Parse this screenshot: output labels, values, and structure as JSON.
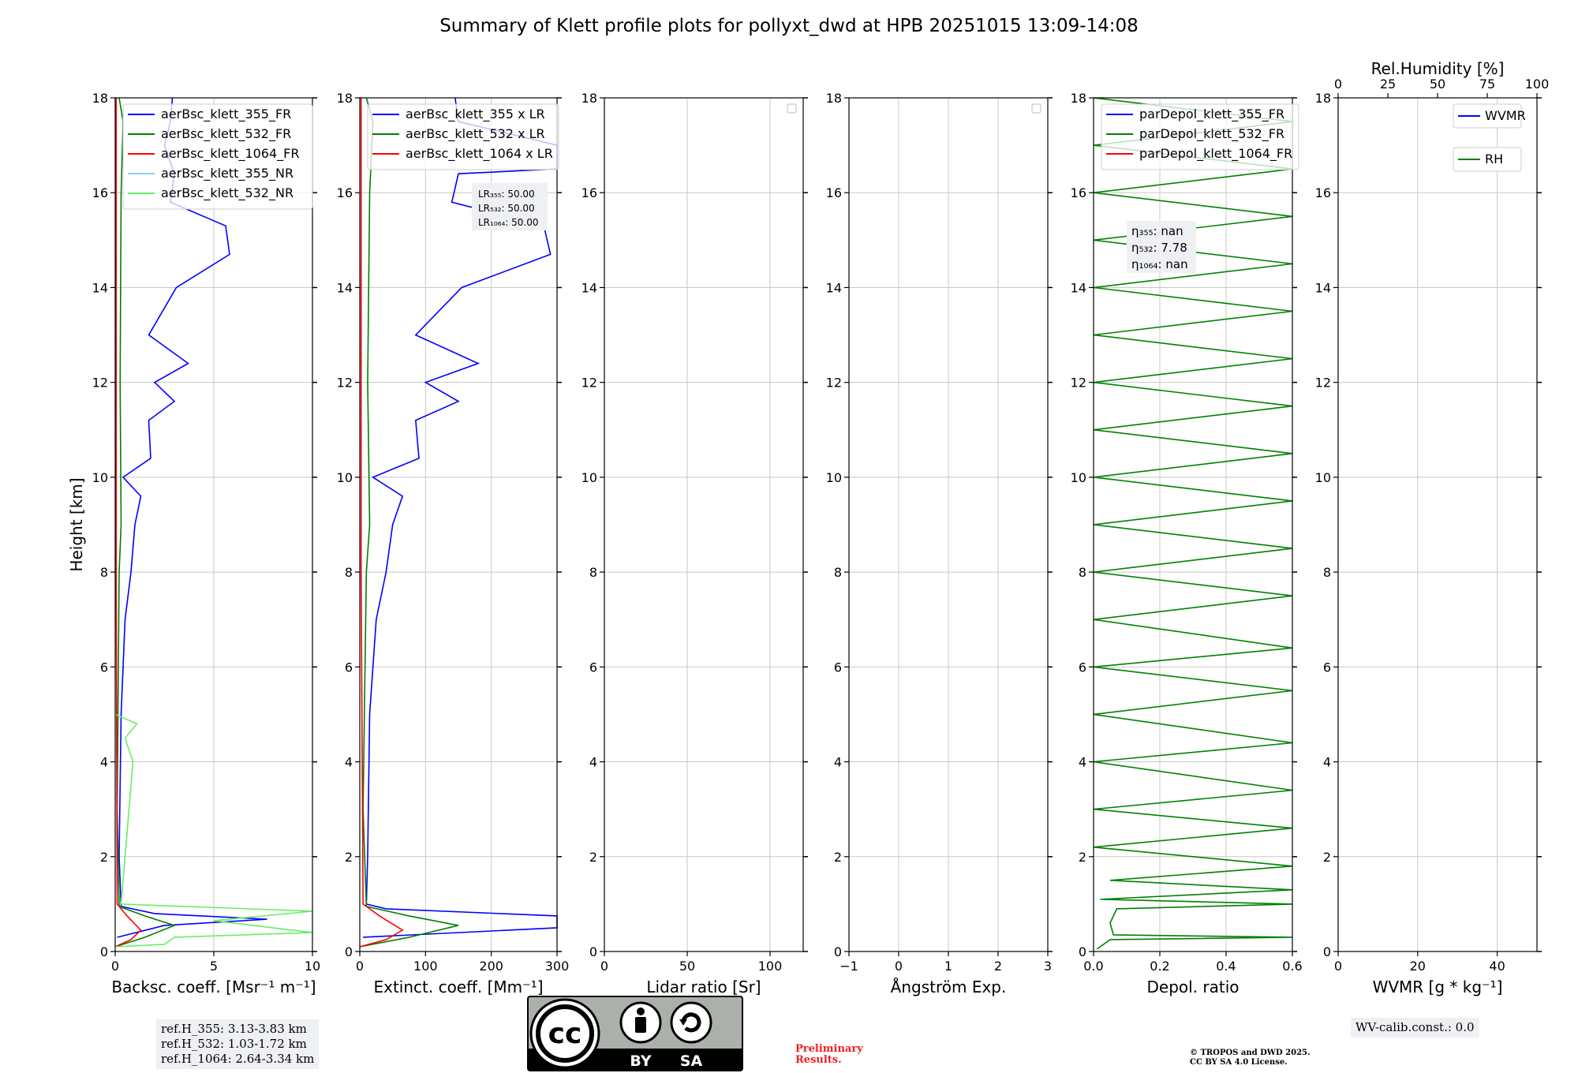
{
  "title": "Summary of Klett profile plots for pollyxt_dwd at HPB 20251015 13:09-14:08",
  "colors": {
    "b355": "#0000ff",
    "b532": "#008000",
    "b1064": "#ff0000",
    "nr355": "#87cefa",
    "nr532": "#66ee66",
    "grid": "#c8c8c8"
  },
  "chart_data": [
    {
      "id": "bsc",
      "type": "line",
      "xlabel": "Backsc. coeff. [Msr⁻¹ m⁻¹]",
      "ylabel": "Height [km]",
      "xlim": [
        0,
        10
      ],
      "ylim": [
        0,
        18
      ],
      "xticks": [
        0,
        5,
        10
      ],
      "xticklabels": [
        "0",
        "5",
        "10"
      ],
      "yticks": [
        0,
        2,
        4,
        6,
        8,
        10,
        12,
        14,
        16,
        18
      ],
      "legend": [
        "aerBsc_klett_355_FR",
        "aerBsc_klett_532_FR",
        "aerBsc_klett_1064_FR",
        "aerBsc_klett_355_NR",
        "aerBsc_klett_532_NR"
      ],
      "series": [
        {
          "name": "aerBsc_klett_355_FR",
          "color": "b355",
          "points": [
            [
              0.1,
              0.3
            ],
            [
              2.5,
              0.55
            ],
            [
              7.7,
              0.68
            ],
            [
              2.0,
              0.8
            ],
            [
              0.3,
              0.95
            ],
            [
              0.2,
              2.0
            ],
            [
              0.3,
              5.0
            ],
            [
              0.5,
              7.0
            ],
            [
              0.8,
              8.0
            ],
            [
              1.0,
              9.0
            ],
            [
              1.3,
              9.6
            ],
            [
              0.4,
              10.0
            ],
            [
              1.8,
              10.4
            ],
            [
              1.7,
              11.2
            ],
            [
              3.0,
              11.6
            ],
            [
              2.0,
              12.0
            ],
            [
              3.7,
              12.4
            ],
            [
              1.7,
              13.0
            ],
            [
              3.1,
              14.0
            ],
            [
              5.8,
              14.7
            ],
            [
              5.6,
              15.3
            ],
            [
              2.8,
              15.8
            ],
            [
              3.0,
              16.4
            ],
            [
              2.5,
              17.0
            ],
            [
              2.8,
              17.5
            ],
            [
              2.9,
              18.0
            ]
          ]
        },
        {
          "name": "aerBsc_klett_532_FR",
          "color": "b532",
          "points": [
            [
              0.0,
              0.1
            ],
            [
              1.5,
              0.3
            ],
            [
              3.0,
              0.55
            ],
            [
              1.5,
              0.75
            ],
            [
              0.2,
              0.95
            ],
            [
              0.1,
              3.0
            ],
            [
              0.2,
              8.0
            ],
            [
              0.3,
              9.0
            ],
            [
              0.25,
              12.0
            ],
            [
              0.3,
              16.0
            ],
            [
              0.4,
              17.5
            ],
            [
              0.2,
              18.0
            ]
          ]
        },
        {
          "name": "aerBsc_klett_1064_FR",
          "color": "b1064",
          "points": [
            [
              0.0,
              0.1
            ],
            [
              0.8,
              0.25
            ],
            [
              1.3,
              0.45
            ],
            [
              0.6,
              0.75
            ],
            [
              0.1,
              1.0
            ],
            [
              0.05,
              8.0
            ],
            [
              0.05,
              18.0
            ]
          ]
        },
        {
          "name": "aerBsc_klett_532_NR",
          "color": "nr532",
          "points": [
            [
              0.0,
              0.1
            ],
            [
              2.5,
              0.15
            ],
            [
              3.0,
              0.3
            ],
            [
              10.0,
              0.4
            ],
            [
              5.0,
              0.65
            ],
            [
              10.0,
              0.85
            ],
            [
              0.3,
              1.0
            ],
            [
              0.5,
              2.0
            ],
            [
              0.7,
              3.0
            ],
            [
              0.9,
              4.0
            ],
            [
              0.5,
              4.5
            ],
            [
              1.1,
              4.8
            ],
            [
              0.0,
              5.0
            ]
          ]
        }
      ]
    },
    {
      "id": "ext",
      "type": "line",
      "xlabel": "Extinct. coeff. [Mm⁻¹]",
      "xlim": [
        0,
        300
      ],
      "ylim": [
        0,
        18
      ],
      "xticks": [
        0,
        100,
        200,
        300
      ],
      "xticklabels": [
        "0",
        "100",
        "200",
        "300"
      ],
      "yticks": [
        0,
        2,
        4,
        6,
        8,
        10,
        12,
        14,
        16,
        18
      ],
      "legend": [
        "aerBsc_klett_355 x LR",
        "aerBsc_klett_532 x LR",
        "aerBsc_klett_1064 x LR"
      ],
      "annotations": [
        "LR₃₅₅: 50.00",
        "LR₅₃₂: 50.00",
        "LR₁₀₆₄: 50.00"
      ],
      "series": [
        {
          "name": "aerBsc_klett_355 x LR",
          "color": "b355",
          "points": [
            [
              5,
              0.3
            ],
            [
              300,
              0.5
            ],
            [
              300,
              0.75
            ],
            [
              40,
              0.9
            ],
            [
              10,
              1.0
            ],
            [
              12,
              2.0
            ],
            [
              15,
              5.0
            ],
            [
              25,
              7.0
            ],
            [
              40,
              8.0
            ],
            [
              50,
              9.0
            ],
            [
              65,
              9.6
            ],
            [
              20,
              10.0
            ],
            [
              90,
              10.4
            ],
            [
              85,
              11.2
            ],
            [
              150,
              11.6
            ],
            [
              100,
              12.0
            ],
            [
              180,
              12.4
            ],
            [
              85,
              13.0
            ],
            [
              155,
              14.0
            ],
            [
              290,
              14.7
            ],
            [
              280,
              15.3
            ],
            [
              140,
              15.8
            ],
            [
              150,
              16.4
            ],
            [
              300,
              16.5
            ],
            [
              300,
              17.0
            ],
            [
              150,
              17.5
            ],
            [
              145,
              18.0
            ]
          ]
        },
        {
          "name": "aerBsc_klett_532 x LR",
          "color": "b532",
          "points": [
            [
              0,
              0.1
            ],
            [
              75,
              0.3
            ],
            [
              150,
              0.55
            ],
            [
              75,
              0.75
            ],
            [
              10,
              0.95
            ],
            [
              5,
              3.0
            ],
            [
              10,
              8.0
            ],
            [
              15,
              9.0
            ],
            [
              12,
              12.0
            ],
            [
              15,
              16.0
            ],
            [
              20,
              17.5
            ],
            [
              10,
              18.0
            ]
          ]
        },
        {
          "name": "aerBsc_klett_1064 x LR",
          "color": "b1064",
          "points": [
            [
              0,
              0.1
            ],
            [
              40,
              0.25
            ],
            [
              65,
              0.45
            ],
            [
              30,
              0.75
            ],
            [
              5,
              1.0
            ],
            [
              2,
              8.0
            ],
            [
              2,
              18.0
            ]
          ]
        }
      ]
    },
    {
      "id": "lr",
      "type": "line",
      "xlabel": "Lidar ratio [Sr]",
      "xlim": [
        0,
        120
      ],
      "ylim": [
        0,
        18
      ],
      "xticks": [
        0,
        50,
        100
      ],
      "xticklabels": [
        "0",
        "50",
        "100"
      ],
      "yticks": [
        0,
        2,
        4,
        6,
        8,
        10,
        12,
        14,
        16,
        18
      ],
      "series": []
    },
    {
      "id": "ang",
      "type": "line",
      "xlabel": "Ångström Exp.",
      "xlim": [
        -1,
        3
      ],
      "ylim": [
        0,
        18
      ],
      "xticks": [
        -1,
        0,
        1,
        2,
        3
      ],
      "xticklabels": [
        "−1",
        "0",
        "1",
        "2",
        "3"
      ],
      "yticks": [
        0,
        2,
        4,
        6,
        8,
        10,
        12,
        14,
        16,
        18
      ],
      "series": []
    },
    {
      "id": "depol",
      "type": "line",
      "xlabel": "Depol. ratio",
      "xlim": [
        0.0,
        0.6
      ],
      "ylim": [
        0,
        18
      ],
      "xticks": [
        0.0,
        0.2,
        0.4,
        0.6
      ],
      "xticklabels": [
        "0.0",
        "0.2",
        "0.4",
        "0.6"
      ],
      "yticks": [
        0,
        2,
        4,
        6,
        8,
        10,
        12,
        14,
        16,
        18
      ],
      "legend": [
        "parDepol_klett_355_FR",
        "parDepol_klett_532_FR",
        "parDepol_klett_1064_FR"
      ],
      "annotations": [
        "η₃₅₅: nan",
        "η₅₃₂: 7.78",
        "η₁₀₆₄: nan"
      ],
      "series": [
        {
          "name": "parDepol_klett_532_FR",
          "color": "b532",
          "points": [
            [
              0.01,
              0.05
            ],
            [
              0.03,
              0.15
            ],
            [
              0.05,
              0.25
            ],
            [
              0.6,
              0.3
            ],
            [
              0.06,
              0.35
            ],
            [
              0.05,
              0.6
            ],
            [
              0.07,
              0.9
            ],
            [
              0.6,
              1.0
            ],
            [
              0.02,
              1.1
            ],
            [
              0.6,
              1.3
            ],
            [
              0.05,
              1.5
            ],
            [
              0.6,
              1.8
            ],
            [
              0.0,
              2.2
            ],
            [
              0.6,
              2.6
            ],
            [
              0.0,
              3.0
            ],
            [
              0.6,
              3.4
            ],
            [
              0.0,
              4.0
            ],
            [
              0.6,
              4.4
            ],
            [
              0.0,
              5.0
            ],
            [
              0.6,
              5.5
            ],
            [
              0.0,
              6.0
            ],
            [
              0.6,
              6.4
            ],
            [
              0.0,
              7.0
            ],
            [
              0.6,
              7.5
            ],
            [
              0.0,
              8.0
            ],
            [
              0.6,
              8.5
            ],
            [
              0.0,
              9.0
            ],
            [
              0.6,
              9.5
            ],
            [
              0.0,
              10.0
            ],
            [
              0.6,
              10.5
            ],
            [
              0.0,
              11.0
            ],
            [
              0.6,
              11.5
            ],
            [
              0.0,
              12.0
            ],
            [
              0.6,
              12.5
            ],
            [
              0.0,
              13.0
            ],
            [
              0.6,
              13.5
            ],
            [
              0.0,
              14.0
            ],
            [
              0.6,
              14.5
            ],
            [
              0.0,
              15.0
            ],
            [
              0.6,
              15.5
            ],
            [
              0.0,
              16.0
            ],
            [
              0.6,
              16.5
            ],
            [
              0.0,
              17.0
            ],
            [
              0.6,
              17.5
            ],
            [
              0.0,
              18.0
            ]
          ]
        }
      ]
    },
    {
      "id": "wv",
      "type": "line",
      "xlabel": "WVMR [g * kg⁻¹]",
      "toplabel": "Rel.Humidity [%]",
      "xlim": [
        0,
        50
      ],
      "ylim": [
        0,
        18
      ],
      "xticks": [
        0,
        20,
        40
      ],
      "xticklabels": [
        "0",
        "20",
        "40"
      ],
      "yticks": [
        0,
        2,
        4,
        6,
        8,
        10,
        12,
        14,
        16,
        18
      ],
      "topticks": [
        0,
        25,
        50,
        75,
        100
      ],
      "toplim": [
        0,
        100
      ],
      "legend": [
        "WVMR",
        "RH"
      ],
      "series": []
    }
  ],
  "refbox": [
    "ref.H_355: 3.13-3.83 km",
    "ref.H_532: 1.03-1.72 km",
    "ref.H_1064: 2.64-3.34 km"
  ],
  "wvcalib": "WV-calib.const.: 0.0",
  "prelim": [
    "Preliminary",
    "Results."
  ],
  "copyright": [
    "© TROPOS and DWD 2025.",
    "CC BY SA 4.0 License."
  ],
  "cc": {
    "cc": "cc",
    "by": "BY",
    "sa": "SA"
  }
}
